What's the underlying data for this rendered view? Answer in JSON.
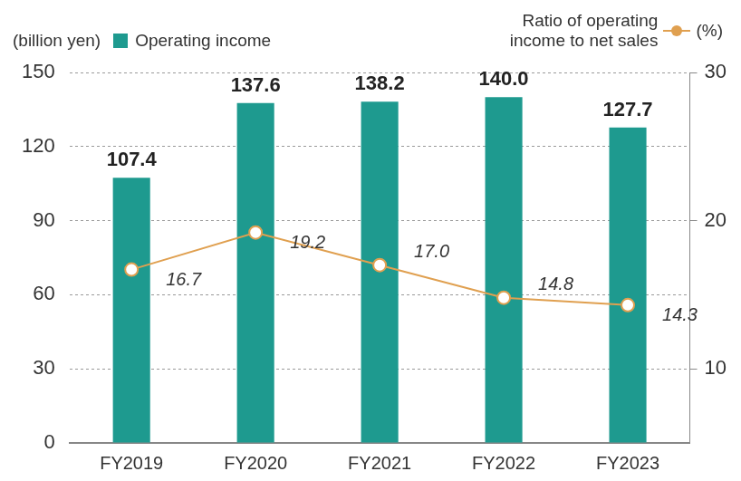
{
  "chart_data": {
    "type": "bar",
    "categories": [
      "FY2019",
      "FY2020",
      "FY2021",
      "FY2022",
      "FY2023"
    ],
    "ylabel": "(billion yen)",
    "y2label": "(%)",
    "ylim": [
      0,
      150
    ],
    "yticks": [
      0,
      30,
      60,
      90,
      120,
      150
    ],
    "y2lim": [
      5,
      30
    ],
    "y2ticks": [
      10,
      20,
      30
    ],
    "grid": true,
    "data_labels": true,
    "series": [
      {
        "name": "Operating income",
        "type": "bar",
        "color": "#1e9a8f",
        "values": [
          107.4,
          137.6,
          138.2,
          140.0,
          127.7
        ],
        "value_labels": [
          "107.4",
          "137.6",
          "138.2",
          "140.0",
          "127.7"
        ]
      },
      {
        "name": "Ratio of operating income to net sales",
        "type": "line",
        "axis": "y2",
        "color": "#e0a050",
        "marker": "circle",
        "values": [
          16.7,
          19.2,
          17.0,
          14.8,
          14.3
        ],
        "value_labels": [
          "16.7",
          "19.2",
          "17.0",
          "14.8",
          "14.3"
        ]
      }
    ]
  }
}
